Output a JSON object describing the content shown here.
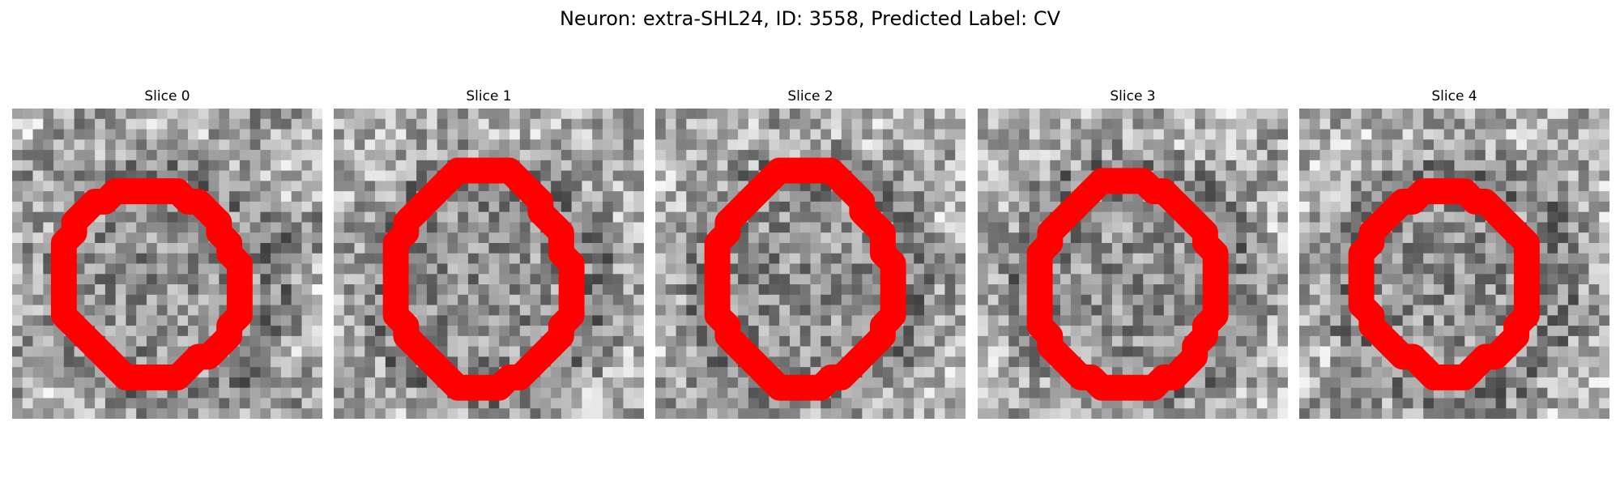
{
  "figure": {
    "title": "Neuron: extra-SHL24, ID: 3558, Predicted Label: CV",
    "colors": {
      "background": "#ffffff",
      "contour": "#ff0000"
    }
  },
  "panels": [
    {
      "title": "Slice 0",
      "seed": 11,
      "outer_dark": 0.55,
      "contour": [
        [
          13,
          8
        ],
        [
          16,
          8
        ],
        [
          17,
          9
        ],
        [
          18,
          9
        ],
        [
          19,
          10
        ],
        [
          20,
          11
        ],
        [
          20,
          12
        ],
        [
          21,
          13
        ],
        [
          21,
          14
        ],
        [
          22,
          15
        ],
        [
          22,
          16
        ],
        [
          22,
          17
        ],
        [
          22,
          18
        ],
        [
          22,
          19
        ],
        [
          22,
          20
        ],
        [
          21,
          21
        ],
        [
          21,
          22
        ],
        [
          20,
          23
        ],
        [
          19,
          24
        ],
        [
          18,
          24
        ],
        [
          17,
          25
        ],
        [
          16,
          26
        ],
        [
          14,
          26
        ],
        [
          11,
          26
        ],
        [
          10,
          25
        ],
        [
          9,
          24
        ],
        [
          8,
          23
        ],
        [
          7,
          22
        ],
        [
          6,
          21
        ],
        [
          5,
          20
        ],
        [
          5,
          19
        ],
        [
          5,
          18
        ],
        [
          5,
          16
        ],
        [
          5,
          14
        ],
        [
          5,
          13
        ],
        [
          6,
          12
        ],
        [
          6,
          11
        ],
        [
          7,
          10
        ],
        [
          8,
          9
        ],
        [
          9,
          9
        ],
        [
          10,
          8
        ]
      ]
    },
    {
      "title": "Slice 1",
      "seed": 23,
      "outer_dark": 0.2,
      "contour": [
        [
          12,
          6
        ],
        [
          17,
          6
        ],
        [
          18,
          7
        ],
        [
          19,
          8
        ],
        [
          20,
          9
        ],
        [
          20,
          10
        ],
        [
          21,
          11
        ],
        [
          22,
          12
        ],
        [
          22,
          14
        ],
        [
          23,
          15
        ],
        [
          23,
          17
        ],
        [
          23,
          19
        ],
        [
          23,
          20
        ],
        [
          22,
          21
        ],
        [
          22,
          22
        ],
        [
          21,
          23
        ],
        [
          20,
          24
        ],
        [
          19,
          25
        ],
        [
          18,
          26
        ],
        [
          17,
          26
        ],
        [
          16,
          27
        ],
        [
          12,
          27
        ],
        [
          11,
          26
        ],
        [
          10,
          25
        ],
        [
          9,
          24
        ],
        [
          8,
          23
        ],
        [
          7,
          22
        ],
        [
          7,
          21
        ],
        [
          6,
          20
        ],
        [
          6,
          18
        ],
        [
          6,
          16
        ],
        [
          6,
          14
        ],
        [
          6,
          13
        ],
        [
          7,
          12
        ],
        [
          7,
          11
        ],
        [
          8,
          10
        ],
        [
          9,
          9
        ],
        [
          10,
          8
        ],
        [
          11,
          7
        ]
      ]
    },
    {
      "title": "Slice 2",
      "seed": 37,
      "outer_dark": 0.3,
      "contour": [
        [
          12,
          6
        ],
        [
          17,
          6
        ],
        [
          18,
          7
        ],
        [
          19,
          8
        ],
        [
          20,
          9
        ],
        [
          20,
          10
        ],
        [
          21,
          11
        ],
        [
          22,
          12
        ],
        [
          22,
          14
        ],
        [
          23,
          15
        ],
        [
          23,
          17
        ],
        [
          23,
          19
        ],
        [
          23,
          20
        ],
        [
          22,
          21
        ],
        [
          22,
          22
        ],
        [
          21,
          23
        ],
        [
          20,
          24
        ],
        [
          19,
          25
        ],
        [
          18,
          26
        ],
        [
          17,
          26
        ],
        [
          16,
          27
        ],
        [
          12,
          27
        ],
        [
          11,
          26
        ],
        [
          10,
          25
        ],
        [
          9,
          24
        ],
        [
          8,
          23
        ],
        [
          7,
          22
        ],
        [
          7,
          21
        ],
        [
          6,
          20
        ],
        [
          6,
          18
        ],
        [
          6,
          16
        ],
        [
          6,
          14
        ],
        [
          6,
          13
        ],
        [
          7,
          12
        ],
        [
          7,
          11
        ],
        [
          8,
          10
        ],
        [
          9,
          9
        ],
        [
          10,
          8
        ],
        [
          11,
          7
        ]
      ]
    },
    {
      "title": "Slice 3",
      "seed": 51,
      "outer_dark": 0.25,
      "contour": [
        [
          12,
          7
        ],
        [
          16,
          7
        ],
        [
          17,
          8
        ],
        [
          18,
          8
        ],
        [
          19,
          9
        ],
        [
          20,
          10
        ],
        [
          21,
          11
        ],
        [
          22,
          12
        ],
        [
          22,
          13
        ],
        [
          23,
          14
        ],
        [
          23,
          16
        ],
        [
          23,
          18
        ],
        [
          23,
          20
        ],
        [
          22,
          21
        ],
        [
          22,
          22
        ],
        [
          21,
          23
        ],
        [
          21,
          24
        ],
        [
          20,
          25
        ],
        [
          19,
          26
        ],
        [
          18,
          26
        ],
        [
          17,
          27
        ],
        [
          12,
          27
        ],
        [
          11,
          26
        ],
        [
          10,
          26
        ],
        [
          9,
          25
        ],
        [
          8,
          24
        ],
        [
          7,
          23
        ],
        [
          7,
          22
        ],
        [
          6,
          21
        ],
        [
          6,
          20
        ],
        [
          6,
          18
        ],
        [
          6,
          16
        ],
        [
          6,
          14
        ],
        [
          7,
          13
        ],
        [
          7,
          12
        ],
        [
          8,
          11
        ],
        [
          9,
          10
        ],
        [
          10,
          9
        ],
        [
          11,
          8
        ]
      ]
    },
    {
      "title": "Slice 4",
      "seed": 67,
      "outer_dark": 0.35,
      "contour": [
        [
          12,
          8
        ],
        [
          16,
          8
        ],
        [
          17,
          9
        ],
        [
          18,
          9
        ],
        [
          19,
          10
        ],
        [
          20,
          11
        ],
        [
          21,
          12
        ],
        [
          22,
          13
        ],
        [
          22,
          14
        ],
        [
          22,
          15
        ],
        [
          22,
          17
        ],
        [
          22,
          19
        ],
        [
          22,
          20
        ],
        [
          21,
          21
        ],
        [
          21,
          22
        ],
        [
          20,
          23
        ],
        [
          19,
          24
        ],
        [
          18,
          24
        ],
        [
          17,
          25
        ],
        [
          16,
          26
        ],
        [
          13,
          26
        ],
        [
          12,
          25
        ],
        [
          11,
          24
        ],
        [
          10,
          24
        ],
        [
          9,
          23
        ],
        [
          8,
          22
        ],
        [
          7,
          21
        ],
        [
          7,
          20
        ],
        [
          6,
          19
        ],
        [
          6,
          17
        ],
        [
          6,
          15
        ],
        [
          6,
          14
        ],
        [
          7,
          13
        ],
        [
          7,
          12
        ],
        [
          8,
          11
        ],
        [
          9,
          10
        ],
        [
          10,
          9
        ],
        [
          11,
          9
        ]
      ]
    }
  ]
}
